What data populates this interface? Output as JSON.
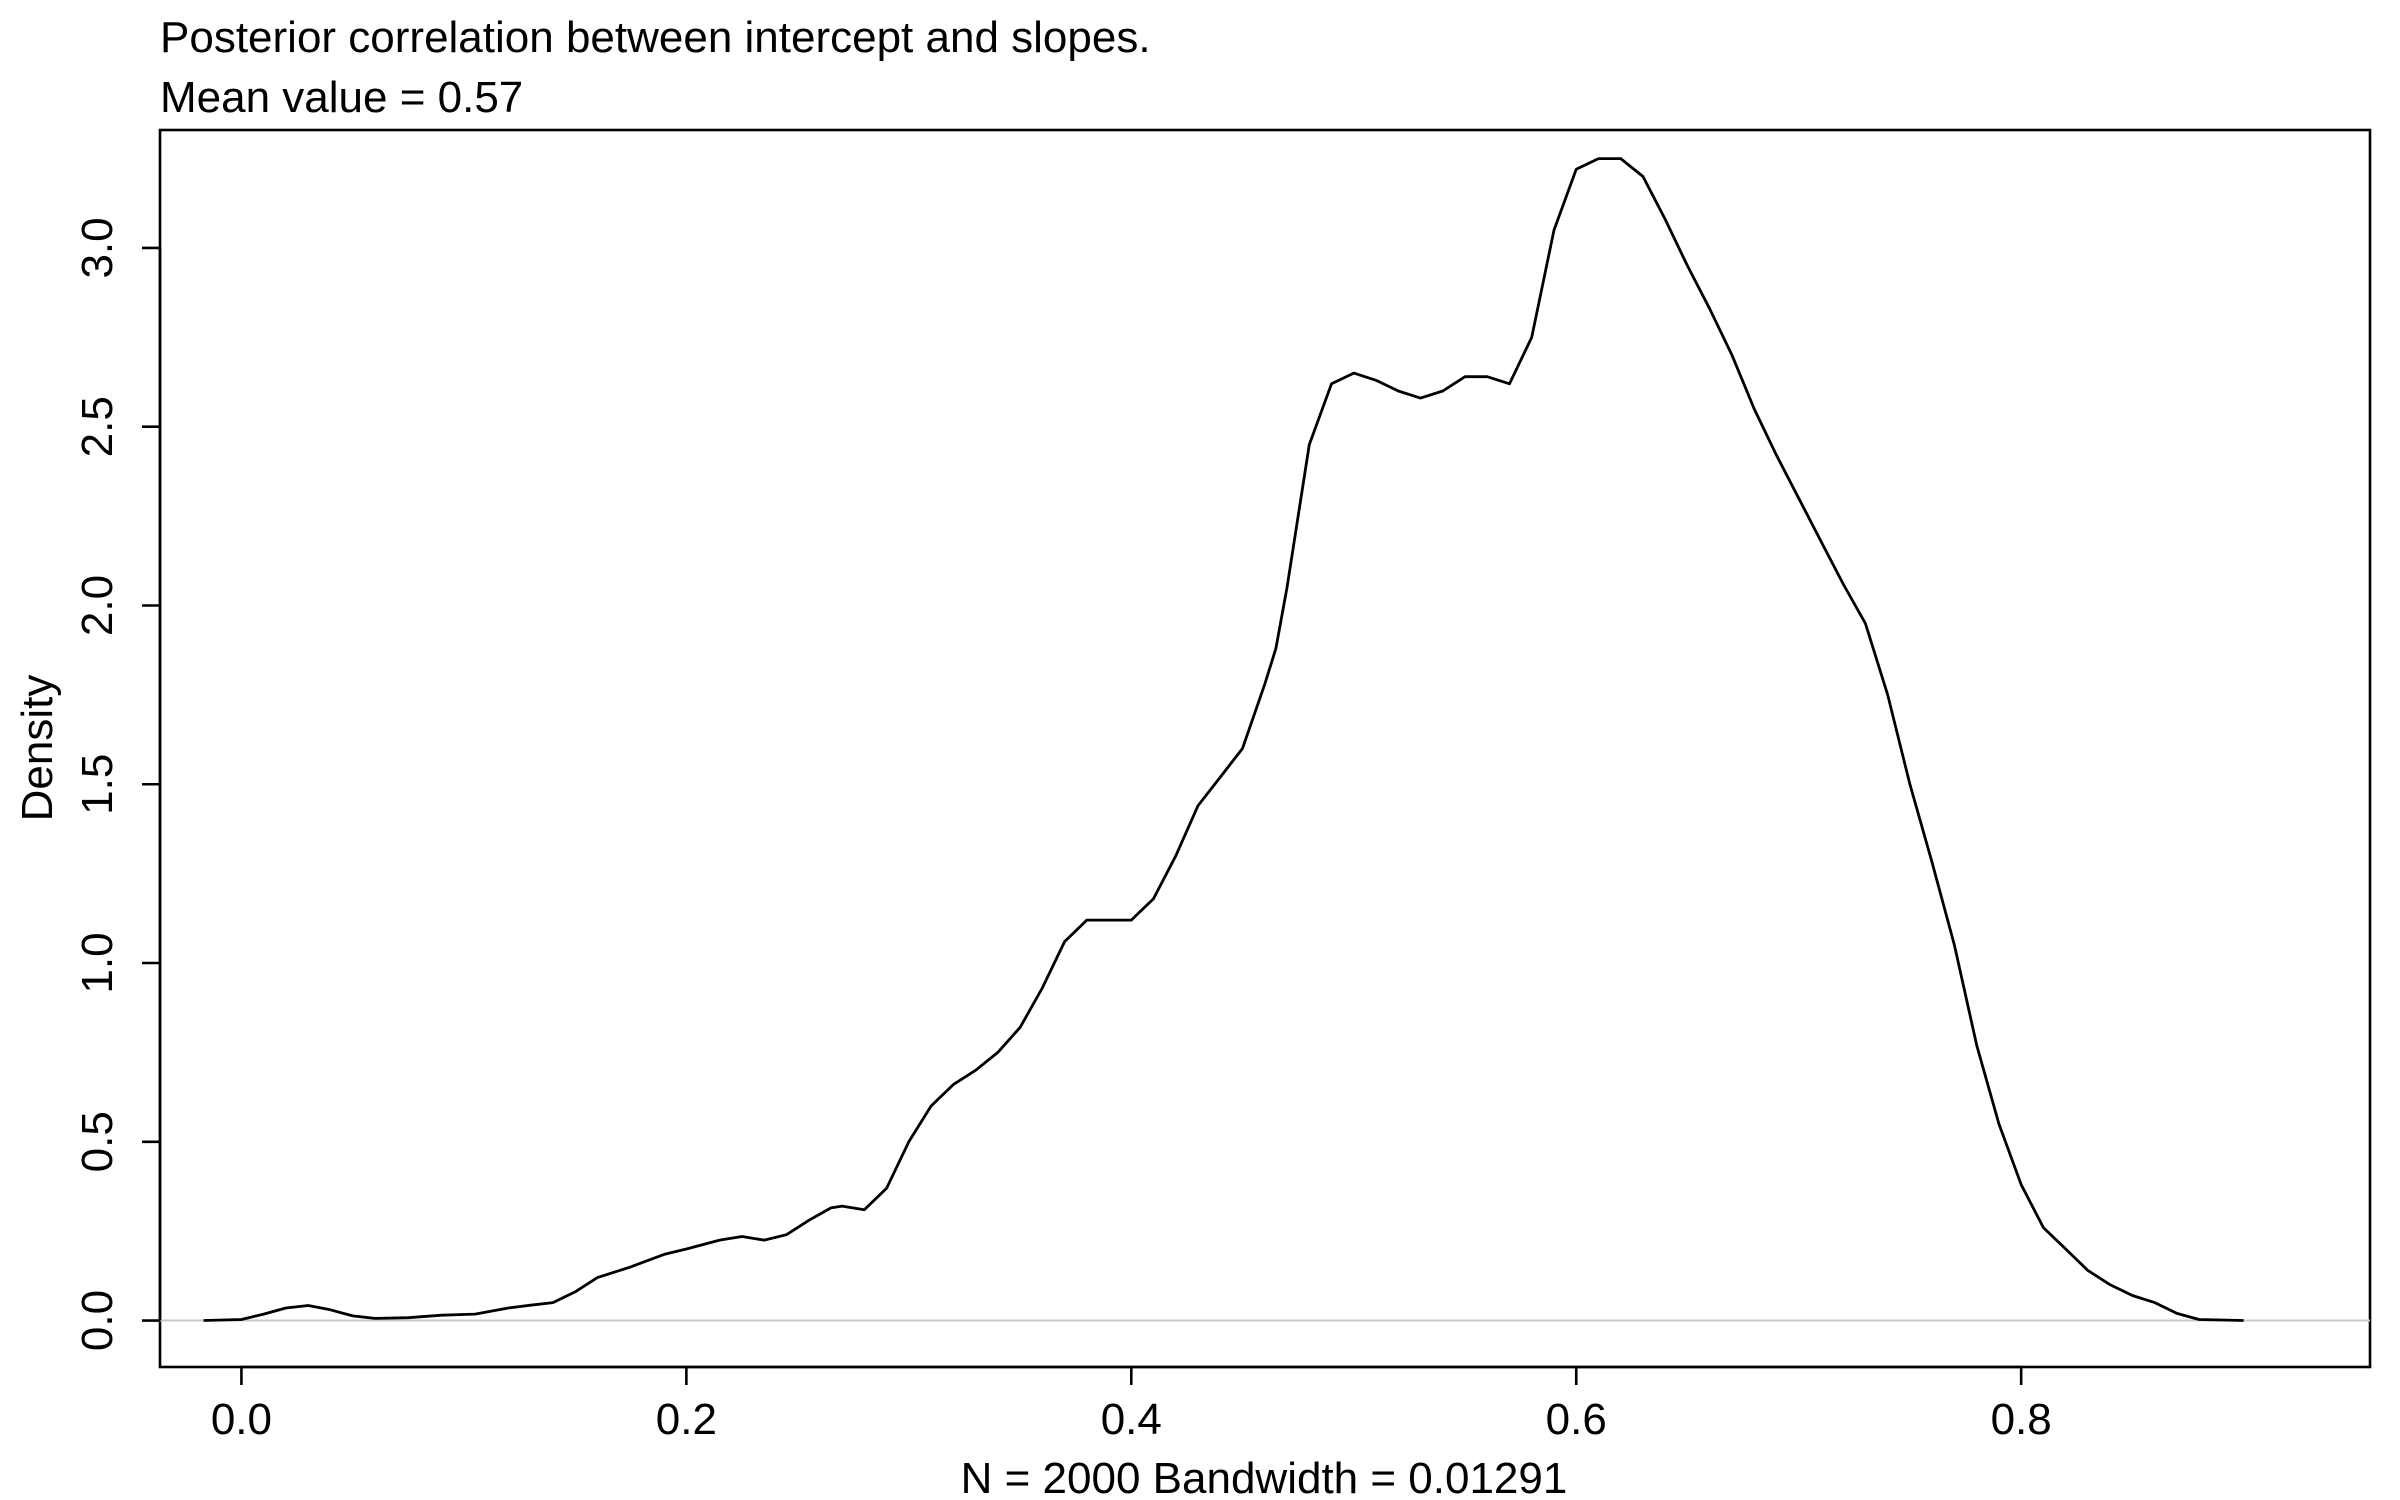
{
  "chart_data": {
    "type": "line",
    "title": "Posterior correlation between intercept and slopes.",
    "subtitle": "Mean value = 0.57",
    "xlabel": "N = 2000   Bandwidth = 0.01291",
    "ylabel": "Density",
    "xlim": [
      -0.0366,
      0.9568
    ],
    "ylim": [
      -0.13,
      3.33
    ],
    "x_ticks": [
      0.0,
      0.2,
      0.4,
      0.6,
      0.8
    ],
    "x_tick_labels": [
      "0.0",
      "0.2",
      "0.4",
      "0.6",
      "0.8"
    ],
    "y_ticks": [
      0.0,
      0.5,
      1.0,
      1.5,
      2.0,
      2.5,
      3.0
    ],
    "y_tick_labels": [
      "0.0",
      "0.5",
      "1.0",
      "1.5",
      "2.0",
      "2.5",
      "3.0"
    ],
    "baseline": 0,
    "grid": false,
    "series": [
      {
        "color": "#000000",
        "x": [
          -0.017,
          0.0,
          0.01,
          0.02,
          0.03,
          0.04,
          0.05,
          0.06,
          0.075,
          0.09,
          0.105,
          0.12,
          0.13,
          0.14,
          0.15,
          0.16,
          0.175,
          0.19,
          0.2,
          0.215,
          0.225,
          0.235,
          0.245,
          0.255,
          0.265,
          0.27,
          0.28,
          0.29,
          0.3,
          0.31,
          0.32,
          0.33,
          0.34,
          0.35,
          0.36,
          0.37,
          0.38,
          0.39,
          0.4,
          0.41,
          0.42,
          0.43,
          0.44,
          0.45,
          0.46,
          0.465,
          0.47,
          0.48,
          0.49,
          0.5,
          0.51,
          0.52,
          0.53,
          0.54,
          0.55,
          0.56,
          0.57,
          0.58,
          0.59,
          0.6,
          0.61,
          0.62,
          0.63,
          0.64,
          0.65,
          0.66,
          0.67,
          0.68,
          0.69,
          0.7,
          0.71,
          0.72,
          0.73,
          0.74,
          0.75,
          0.76,
          0.77,
          0.78,
          0.79,
          0.8,
          0.81,
          0.82,
          0.83,
          0.84,
          0.85,
          0.86,
          0.87,
          0.88,
          0.9
        ],
        "y": [
          0.0,
          0.003,
          0.018,
          0.035,
          0.042,
          0.03,
          0.013,
          0.006,
          0.008,
          0.015,
          0.018,
          0.035,
          0.043,
          0.05,
          0.08,
          0.12,
          0.15,
          0.185,
          0.2,
          0.225,
          0.235,
          0.225,
          0.24,
          0.28,
          0.315,
          0.32,
          0.31,
          0.37,
          0.5,
          0.6,
          0.66,
          0.7,
          0.75,
          0.82,
          0.93,
          1.06,
          1.12,
          1.12,
          1.12,
          1.18,
          1.3,
          1.44,
          1.52,
          1.6,
          1.78,
          1.88,
          2.05,
          2.45,
          2.62,
          2.65,
          2.63,
          2.6,
          2.58,
          2.6,
          2.64,
          2.64,
          2.62,
          2.75,
          3.05,
          3.22,
          3.25,
          3.25,
          3.2,
          3.08,
          2.95,
          2.83,
          2.7,
          2.55,
          2.42,
          2.3,
          2.18,
          2.06,
          1.95,
          1.75,
          1.5,
          1.28,
          1.05,
          0.77,
          0.55,
          0.38,
          0.26,
          0.2,
          0.14,
          0.1,
          0.07,
          0.05,
          0.02,
          0.003,
          0.0
        ]
      }
    ]
  }
}
